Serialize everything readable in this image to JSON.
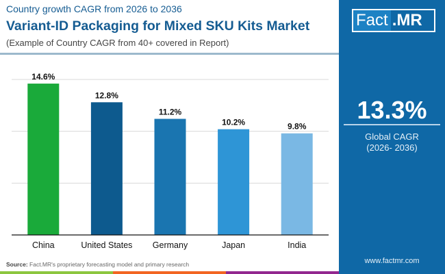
{
  "header": {
    "subtitle": "Country growth CAGR from 2026 to 2036",
    "title": "Variant-ID Packaging for Mixed SKU Kits Market",
    "note": "(Example of Country CAGR from 40+ covered in Report)"
  },
  "logo": {
    "text_a": "Fact",
    "text_b": ".MR"
  },
  "summary": {
    "value": "13.3%",
    "label": "Global CAGR",
    "period": "(2026- 2036)"
  },
  "footer": {
    "source_label": "Source:",
    "source_text": "Fact.MR's proprietary forecasting model and primary research",
    "url": "www.factmr.com"
  },
  "colors": {
    "panel": "#0f68a6",
    "title": "#155c92",
    "stripes": [
      "#8cc63f",
      "#f26522",
      "#92278f"
    ]
  },
  "chart_data": {
    "type": "bar",
    "title": "",
    "xlabel": "",
    "ylabel": "",
    "ylim": [
      0,
      15
    ],
    "grid": true,
    "categories": [
      "China",
      "United States",
      "Germany",
      "Japan",
      "India"
    ],
    "values": [
      14.6,
      12.8,
      11.2,
      10.2,
      9.8
    ],
    "labels": [
      "14.6%",
      "12.8%",
      "11.2%",
      "10.2%",
      "9.8%"
    ],
    "bar_colors": [
      "#1aaa3a",
      "#0d5a8e",
      "#1a75b0",
      "#2e95d6",
      "#7ab8e4"
    ]
  }
}
